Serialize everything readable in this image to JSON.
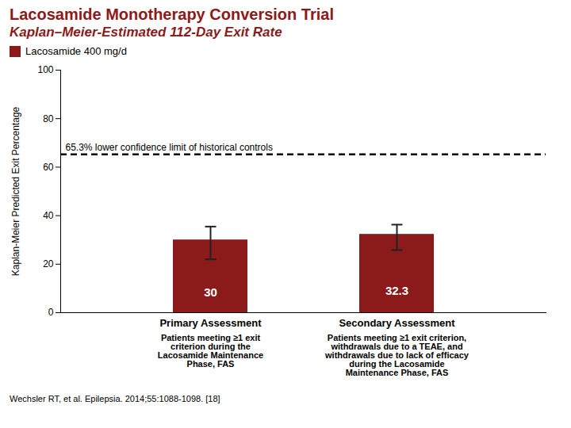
{
  "chart_data": {
    "type": "bar",
    "title": "Lacosamide Monotherapy Conversion Trial",
    "subtitle": "Kaplan–Meier-Estimated 112-Day Exit Rate",
    "categories": [
      "Primary Assessment",
      "Secondary Assessment"
    ],
    "category_notes": [
      "Patients meeting ≥1 exit\ncriterion during the\nLacosamide Maintenance\nPhase, FAS",
      "Patients meeting ≥1 exit criterion,\nwithdrawals due to a TEAE, and\nwithdrawals due to lack of efficacy\nduring the Lacosamide\nMaintenance Phase, FAS"
    ],
    "series": [
      {
        "name": "Lacosamide 400 mg/d",
        "color": "#8B1A1A",
        "values": [
          30.0,
          32.3
        ],
        "errors_upper": [
          5.5,
          4.0
        ],
        "errors_lower": [
          8.0,
          6.5
        ]
      }
    ],
    "reference_line": {
      "value": 65.3,
      "label": "65.3% lower confidence limit of historical controls"
    },
    "ylabel": "Kaplan-Meier Predicted Exit Percentage",
    "ylim": [
      0,
      100
    ],
    "yticks": [
      0,
      20,
      40,
      60,
      80,
      100
    ],
    "grid": false,
    "legend": "upper left",
    "data_labels": true,
    "caption": "Wechsler RT, et al. Epilepsia. 2014;55:1088-1098. [18]"
  }
}
